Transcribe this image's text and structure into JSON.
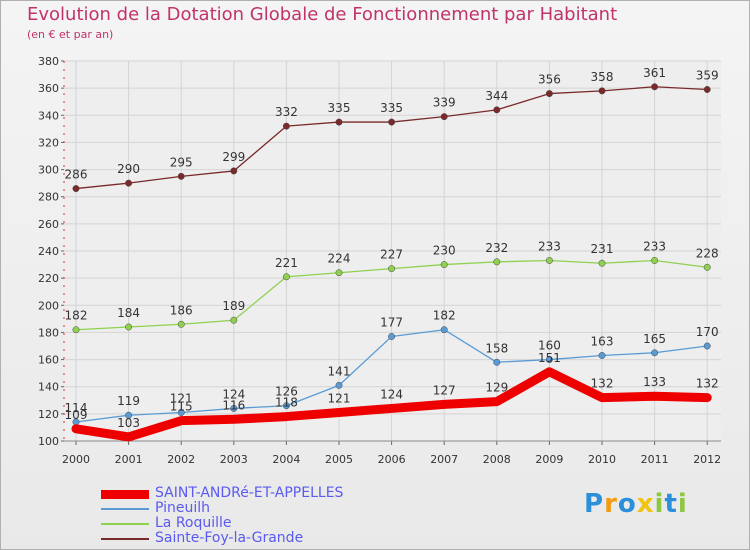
{
  "title": "Evolution de la Dotation Globale de Fonctionnement par Habitant",
  "subtitle": "(en € et par an)",
  "logo": "Proxiti",
  "chart_data": {
    "type": "line",
    "x": [
      "2000",
      "2001",
      "2002",
      "2003",
      "2004",
      "2005",
      "2006",
      "2007",
      "2008",
      "2009",
      "2010",
      "2011",
      "2012"
    ],
    "ylim": [
      100,
      380
    ],
    "yticks": [
      100,
      120,
      140,
      160,
      180,
      200,
      220,
      240,
      260,
      280,
      300,
      320,
      340,
      360,
      380
    ],
    "grid": true,
    "legend_position": "bottom-left",
    "series": [
      {
        "name": "Sainte-Foy-la-Grande",
        "color": "#7a2a2a",
        "values": [
          286,
          290,
          295,
          299,
          332,
          335,
          335,
          339,
          344,
          356,
          358,
          361,
          359
        ]
      },
      {
        "name": "La Roquille",
        "color": "#8fd14f",
        "values": [
          182,
          184,
          186,
          189,
          221,
          224,
          227,
          230,
          232,
          233,
          231,
          233,
          228
        ]
      },
      {
        "name": "Pineuilh",
        "color": "#5a9bd5",
        "values": [
          114,
          119,
          121,
          124,
          126,
          141,
          177,
          182,
          158,
          160,
          163,
          165,
          170
        ]
      },
      {
        "name": "SAINT-ANDRé-ET-APPELLES",
        "color": "#ee0000",
        "values": [
          109,
          103,
          115,
          116,
          118,
          121,
          124,
          127,
          129,
          151,
          132,
          133,
          132
        ]
      }
    ],
    "data_labels": [
      {
        "series": "Sainte-Foy-la-Grande",
        "labels": [
          "286",
          "290",
          "295",
          "299",
          "332",
          "335",
          "335",
          "339",
          "344",
          "356",
          "358",
          "361",
          "359"
        ]
      },
      {
        "series": "La Roquille",
        "labels": [
          "182",
          "184",
          "186",
          "189",
          "221",
          "224",
          "227",
          "230",
          "232",
          "233",
          "231",
          "233",
          "228"
        ]
      },
      {
        "series": "Pineuilh",
        "labels": [
          "114",
          "119",
          "121",
          "124",
          "126",
          "141",
          "177",
          "182",
          "158",
          "160",
          "163",
          "165",
          "170"
        ]
      },
      {
        "series": "SAINT-ANDRé-ET-APPELLES",
        "labels": [
          "109",
          "103",
          "115",
          "116",
          "118",
          "121",
          "124",
          "127",
          "129",
          "151",
          "132",
          "133",
          "132"
        ]
      }
    ]
  },
  "legend": [
    {
      "label": "SAINT-ANDRé-ET-APPELLES",
      "color": "#ee0000",
      "thick": true
    },
    {
      "label": "Pineuilh",
      "color": "#5a9bd5",
      "thick": false
    },
    {
      "label": "La Roquille",
      "color": "#8fd14f",
      "thick": false
    },
    {
      "label": "Sainte-Foy-la-Grande",
      "color": "#7a2a2a",
      "thick": false
    }
  ]
}
